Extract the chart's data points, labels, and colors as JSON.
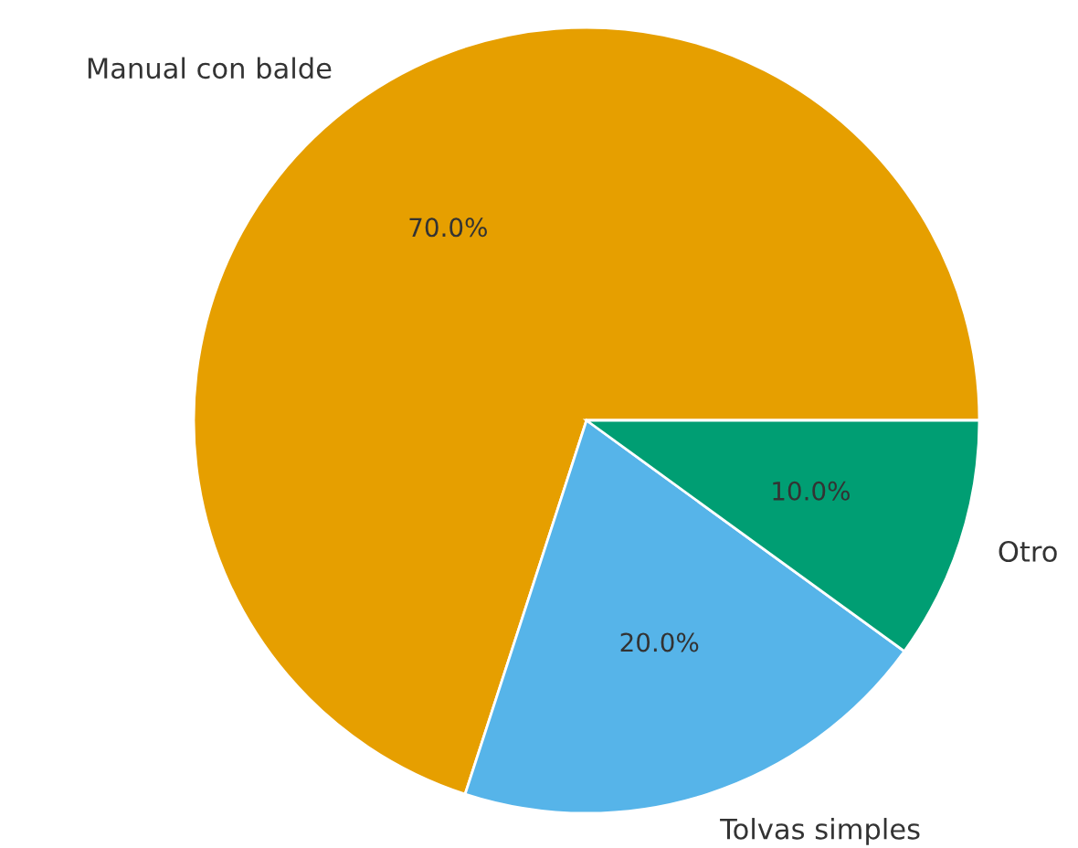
{
  "chart_data": {
    "type": "pie",
    "categories": [
      "Manual con balde",
      "Tolvas simples",
      "Otro"
    ],
    "values": [
      70,
      20,
      10
    ],
    "colors": [
      "#e69f00",
      "#56b4e9",
      "#009e73"
    ],
    "value_labels": [
      "70.0%",
      "20.0%",
      "10.0%"
    ]
  }
}
